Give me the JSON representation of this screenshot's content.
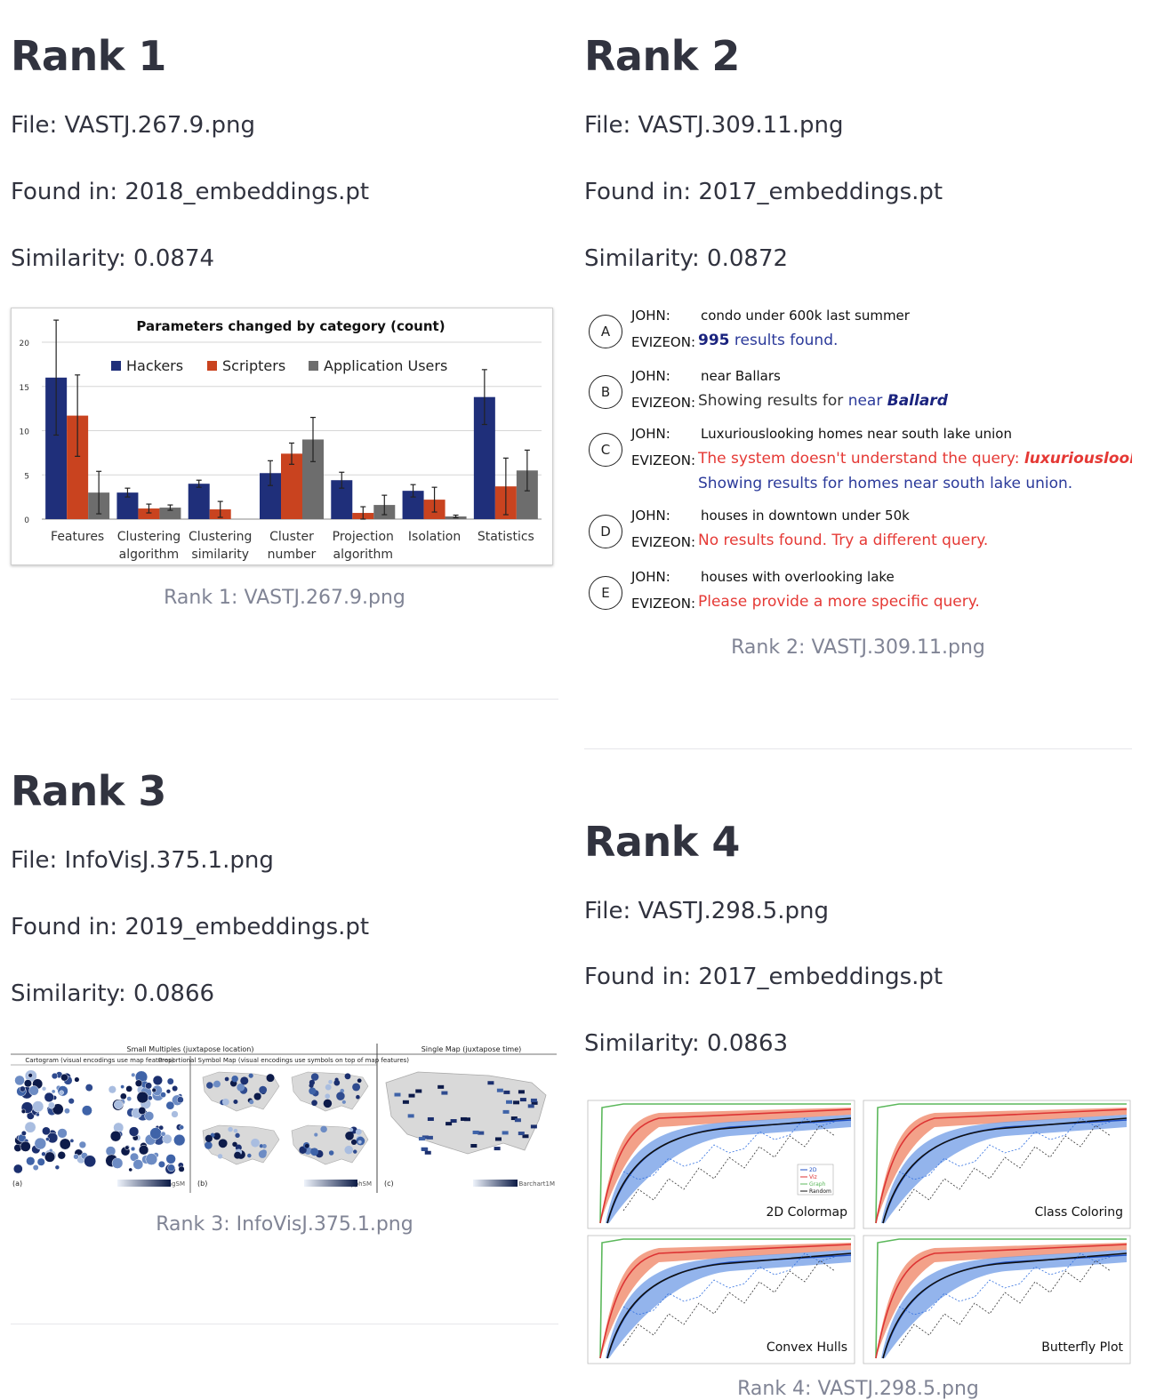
{
  "results": [
    {
      "title": "Rank 1",
      "file": "File: VASTJ.267.9.png",
      "found_in": "Found in: 2018_embeddings.pt",
      "similarity": "Similarity: 0.0874",
      "caption": "Rank 1: VASTJ.267.9.png"
    },
    {
      "title": "Rank 2",
      "file": "File: VASTJ.309.11.png",
      "found_in": "Found in: 2017_embeddings.pt",
      "similarity": "Similarity: 0.0872",
      "caption": "Rank 2: VASTJ.309.11.png"
    },
    {
      "title": "Rank 3",
      "file": "File: InfoVisJ.375.1.png",
      "found_in": "Found in: 2019_embeddings.pt",
      "similarity": "Similarity: 0.0866",
      "caption": "Rank 3: InfoVisJ.375.1.png"
    },
    {
      "title": "Rank 4",
      "file": "File: VASTJ.298.5.png",
      "found_in": "Found in: 2017_embeddings.pt",
      "similarity": "Similarity: 0.0863",
      "caption": "Rank 4: VASTJ.298.5.png"
    }
  ],
  "chart_data": {
    "type": "bar",
    "title": "Parameters changed by category (count)",
    "categories": [
      "Features",
      "Clustering algorithm",
      "Clustering similarity",
      "Cluster number",
      "Projection algorithm",
      "Isolation",
      "Statistics"
    ],
    "category_lines": [
      [
        "Features"
      ],
      [
        "Clustering",
        "algorithm"
      ],
      [
        "Clustering",
        "similarity"
      ],
      [
        "Cluster",
        "number"
      ],
      [
        "Projection",
        "algorithm"
      ],
      [
        "Isolation"
      ],
      [
        "Statistics"
      ]
    ],
    "series": [
      {
        "name": "Hackers",
        "color": "#1f2f7a",
        "values": [
          16,
          3,
          4,
          5.2,
          4.4,
          3.2,
          13.8
        ],
        "errors": [
          6.5,
          0.5,
          0.4,
          1.4,
          0.9,
          0.7,
          3.1
        ]
      },
      {
        "name": "Scripters",
        "color": "#c9431f",
        "values": [
          11.7,
          1.2,
          1.1,
          7.4,
          0.7,
          2.2,
          3.7
        ],
        "errors": [
          4.6,
          0.5,
          0.9,
          1.2,
          0.7,
          1.4,
          3.2
        ]
      },
      {
        "name": "Application Users",
        "color": "#6d6d6d",
        "values": [
          3,
          1.3,
          0,
          9,
          1.6,
          0.3,
          5.5
        ],
        "errors": [
          2.4,
          0.3,
          0,
          2.5,
          1.1,
          0.15,
          2.3
        ]
      }
    ],
    "ylim": [
      0,
      20
    ],
    "yticks": [
      0,
      5,
      10,
      15,
      20
    ],
    "grid": true,
    "legend_position": "top"
  },
  "dialog": [
    {
      "letter": "A",
      "speaker1": "JOHN:",
      "query": "condo under 600k last summer",
      "speaker2": "EVIZEON:",
      "response_lines": [
        [
          {
            "t": "995",
            "style": "blue-bold"
          },
          {
            "t": " results found.",
            "style": "blue"
          }
        ]
      ]
    },
    {
      "letter": "B",
      "speaker1": "JOHN:",
      "query": "near Ballars",
      "speaker2": "EVIZEON:",
      "response_lines": [
        [
          {
            "t": "Showing results for ",
            "style": "dark"
          },
          {
            "t": "near ",
            "style": "blue"
          },
          {
            "t": "Ballard",
            "style": "blue-bolditalic"
          }
        ]
      ]
    },
    {
      "letter": "C",
      "speaker1": "JOHN:",
      "query": "Luxuriouslooking homes near south lake union",
      "speaker2": "EVIZEON:",
      "response_lines": [
        [
          {
            "t": "The system doesn't understand the query: ",
            "style": "red"
          },
          {
            "t": "luxuriouslooking",
            "style": "red-bolditalic"
          }
        ],
        [
          {
            "t": "Showing results for homes near south lake union.",
            "style": "blue"
          }
        ]
      ]
    },
    {
      "letter": "D",
      "speaker1": "JOHN:",
      "query": "houses in downtown under 50k",
      "speaker2": "EVIZEON:",
      "response_lines": [
        [
          {
            "t": "No results found. Try a different query.",
            "style": "red"
          }
        ]
      ]
    },
    {
      "letter": "E",
      "speaker1": "JOHN:",
      "query": "houses with overlooking lake",
      "speaker2": "EVIZEON:",
      "response_lines": [
        [
          {
            "t": "Please provide a more specific query.",
            "style": "red"
          }
        ]
      ]
    }
  ],
  "maps_figure": {
    "group_left": "Small Multiples (juxtapose location)",
    "group_right": "Single Map (juxtapose time)",
    "panels": [
      {
        "title": "Cartogram (visual encodings use map features)",
        "tag": "(a)",
        "name": "DorlingSM"
      },
      {
        "title": "Proportional Symbol Map (visual encodings use symbols on top of map features)",
        "tag": "(b)",
        "name": "GlyphSM"
      },
      {
        "title": "",
        "tag": "(c)",
        "name": "Barchart1M"
      }
    ]
  },
  "curves_figure": {
    "panels": [
      "2D Colormap",
      "Class Coloring",
      "Convex Hulls",
      "Butterfly Plot"
    ],
    "legend": [
      "2D",
      "Viz",
      "Graph",
      "Random"
    ]
  }
}
